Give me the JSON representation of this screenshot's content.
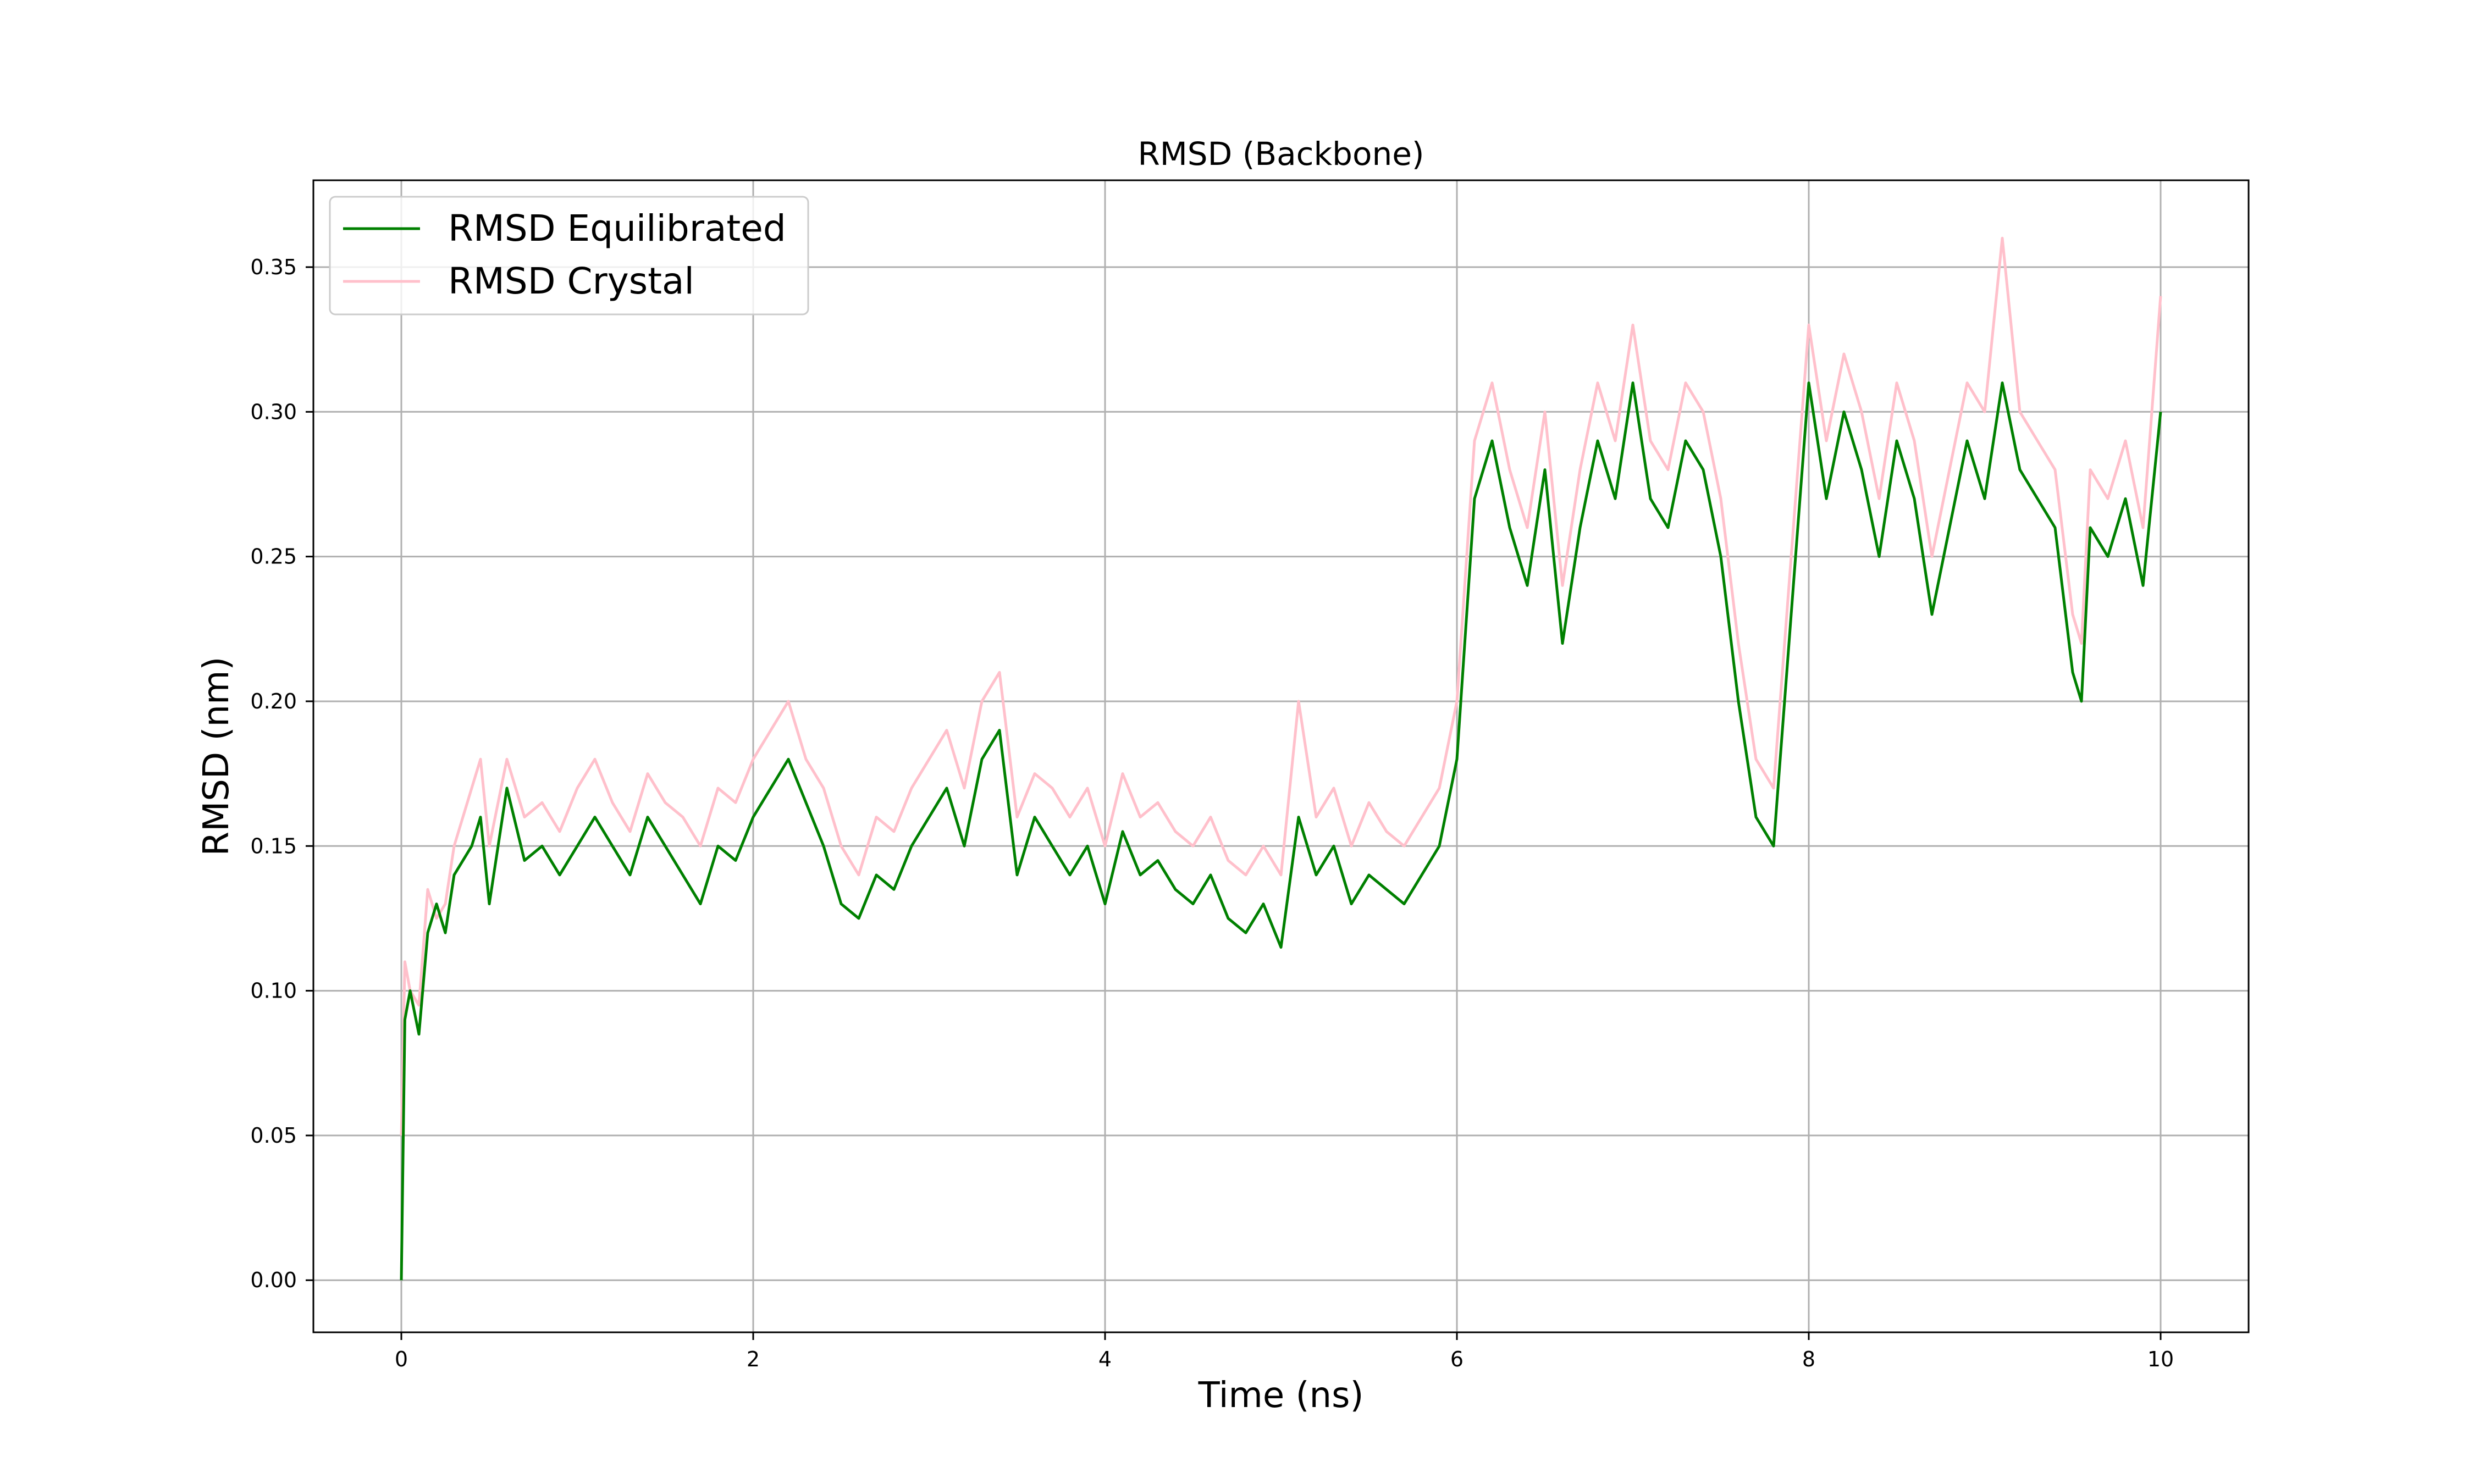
{
  "chart_data": {
    "type": "line",
    "title": "RMSD (Backbone)",
    "xlabel": "Time (ns)",
    "ylabel": "RMSD (nm)",
    "xlim": [
      -0.5,
      10.5
    ],
    "ylim": [
      -0.018,
      0.38
    ],
    "xticks": [
      0,
      2,
      4,
      6,
      8,
      10
    ],
    "yticks": [
      0.0,
      0.05,
      0.1,
      0.15,
      0.2,
      0.25,
      0.3,
      0.35
    ],
    "xtick_labels": [
      "0",
      "2",
      "4",
      "6",
      "8",
      "10"
    ],
    "ytick_labels": [
      "0.00",
      "0.05",
      "0.10",
      "0.15",
      "0.20",
      "0.25",
      "0.30",
      "0.35"
    ],
    "grid": true,
    "legend_position": "top-left",
    "x": [
      0,
      0.02,
      0.05,
      0.1,
      0.15,
      0.2,
      0.25,
      0.3,
      0.4,
      0.45,
      0.5,
      0.6,
      0.7,
      0.8,
      0.9,
      1.0,
      1.1,
      1.2,
      1.3,
      1.4,
      1.5,
      1.6,
      1.7,
      1.8,
      1.9,
      2.0,
      2.1,
      2.2,
      2.3,
      2.4,
      2.5,
      2.6,
      2.7,
      2.8,
      2.9,
      3.0,
      3.1,
      3.2,
      3.3,
      3.4,
      3.5,
      3.6,
      3.7,
      3.8,
      3.9,
      4.0,
      4.1,
      4.2,
      4.3,
      4.4,
      4.5,
      4.6,
      4.7,
      4.8,
      4.9,
      5.0,
      5.1,
      5.2,
      5.3,
      5.4,
      5.5,
      5.6,
      5.7,
      5.8,
      5.9,
      6.0,
      6.1,
      6.2,
      6.3,
      6.4,
      6.5,
      6.6,
      6.7,
      6.8,
      6.9,
      7.0,
      7.1,
      7.2,
      7.3,
      7.4,
      7.5,
      7.6,
      7.7,
      7.8,
      7.9,
      8.0,
      8.1,
      8.2,
      8.3,
      8.4,
      8.5,
      8.6,
      8.7,
      8.8,
      8.9,
      9.0,
      9.1,
      9.2,
      9.3,
      9.4,
      9.5,
      9.55,
      9.6,
      9.7,
      9.8,
      9.9,
      10.0
    ],
    "series": [
      {
        "name": "RMSD Equilibrated",
        "color": "#008000",
        "values": [
          0.0,
          0.09,
          0.1,
          0.085,
          0.12,
          0.13,
          0.12,
          0.14,
          0.15,
          0.16,
          0.13,
          0.17,
          0.145,
          0.15,
          0.14,
          0.15,
          0.16,
          0.15,
          0.14,
          0.16,
          0.15,
          0.14,
          0.13,
          0.15,
          0.145,
          0.16,
          0.17,
          0.18,
          0.165,
          0.15,
          0.13,
          0.125,
          0.14,
          0.135,
          0.15,
          0.16,
          0.17,
          0.15,
          0.18,
          0.19,
          0.14,
          0.16,
          0.15,
          0.14,
          0.15,
          0.13,
          0.155,
          0.14,
          0.145,
          0.135,
          0.13,
          0.14,
          0.125,
          0.12,
          0.13,
          0.115,
          0.16,
          0.14,
          0.15,
          0.13,
          0.14,
          0.135,
          0.13,
          0.14,
          0.15,
          0.18,
          0.27,
          0.29,
          0.26,
          0.24,
          0.28,
          0.22,
          0.26,
          0.29,
          0.27,
          0.31,
          0.27,
          0.26,
          0.29,
          0.28,
          0.25,
          0.2,
          0.16,
          0.15,
          0.23,
          0.31,
          0.27,
          0.3,
          0.28,
          0.25,
          0.29,
          0.27,
          0.23,
          0.26,
          0.29,
          0.27,
          0.31,
          0.28,
          0.27,
          0.26,
          0.21,
          0.2,
          0.26,
          0.25,
          0.27,
          0.24,
          0.3
        ]
      },
      {
        "name": "RMSD Crystal",
        "color": "#ffc0cb",
        "values": [
          0.05,
          0.11,
          0.1,
          0.095,
          0.135,
          0.125,
          0.13,
          0.15,
          0.17,
          0.18,
          0.15,
          0.18,
          0.16,
          0.165,
          0.155,
          0.17,
          0.18,
          0.165,
          0.155,
          0.175,
          0.165,
          0.16,
          0.15,
          0.17,
          0.165,
          0.18,
          0.19,
          0.2,
          0.18,
          0.17,
          0.15,
          0.14,
          0.16,
          0.155,
          0.17,
          0.18,
          0.19,
          0.17,
          0.2,
          0.21,
          0.16,
          0.175,
          0.17,
          0.16,
          0.17,
          0.15,
          0.175,
          0.16,
          0.165,
          0.155,
          0.15,
          0.16,
          0.145,
          0.14,
          0.15,
          0.14,
          0.2,
          0.16,
          0.17,
          0.15,
          0.165,
          0.155,
          0.15,
          0.16,
          0.17,
          0.2,
          0.29,
          0.31,
          0.28,
          0.26,
          0.3,
          0.24,
          0.28,
          0.31,
          0.29,
          0.33,
          0.29,
          0.28,
          0.31,
          0.3,
          0.27,
          0.22,
          0.18,
          0.17,
          0.25,
          0.33,
          0.29,
          0.32,
          0.3,
          0.27,
          0.31,
          0.29,
          0.25,
          0.28,
          0.31,
          0.3,
          0.36,
          0.3,
          0.29,
          0.28,
          0.23,
          0.22,
          0.28,
          0.27,
          0.29,
          0.26,
          0.34
        ]
      }
    ]
  }
}
